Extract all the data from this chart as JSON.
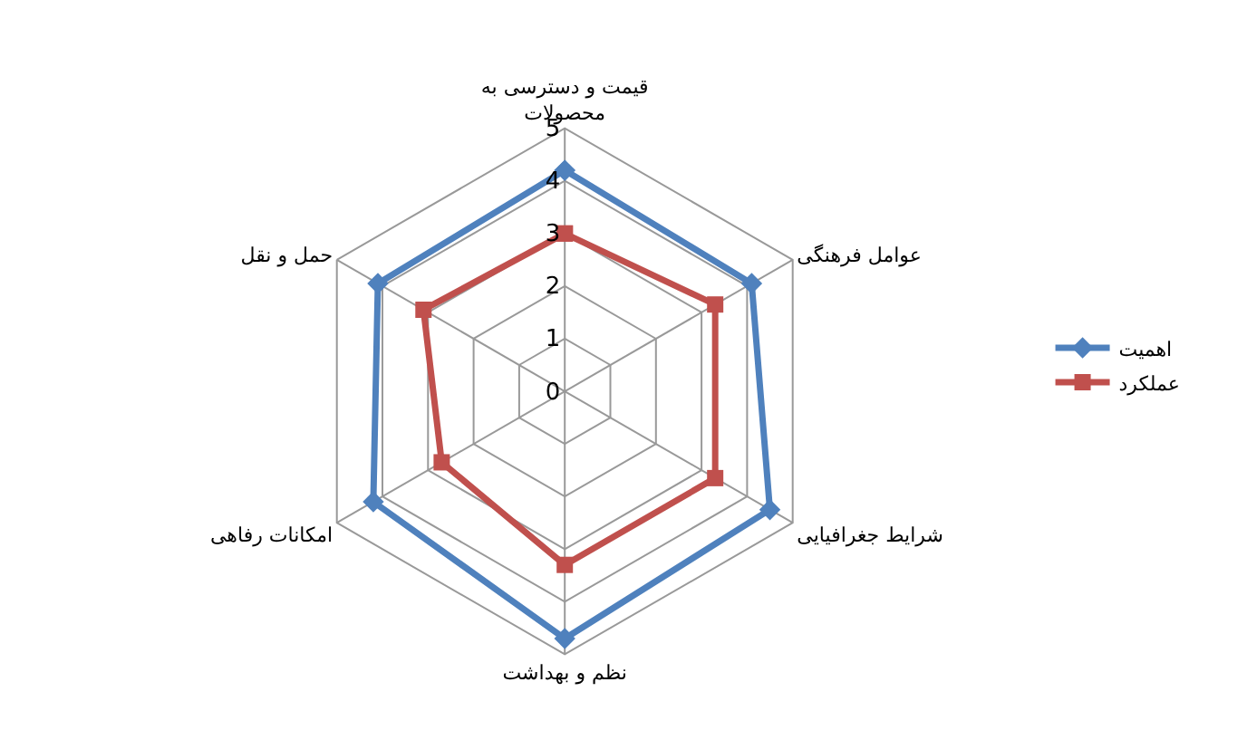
{
  "chart_data": {
    "type": "radar",
    "categories": [
      "قیمت و دسترسی به\nمحصولات",
      "عوامل فرهنگی",
      "شرایط جغرافیایی",
      "نظم و بهداشت",
      "امکانات رفاهی",
      "حمل و نقل"
    ],
    "series": [
      {
        "name": "اهمیت",
        "color": "#4f81bd",
        "marker": "diamond",
        "values": [
          4.2,
          4.1,
          4.5,
          4.7,
          4.2,
          4.1
        ]
      },
      {
        "name": "عملکرد",
        "color": "#c0504d",
        "marker": "square",
        "values": [
          3.0,
          3.3,
          3.3,
          3.3,
          2.7,
          3.1
        ]
      }
    ],
    "ylim": [
      0,
      5
    ],
    "yticks": [
      0,
      1,
      2,
      3,
      4,
      5
    ],
    "grid": true,
    "legend": "right"
  }
}
